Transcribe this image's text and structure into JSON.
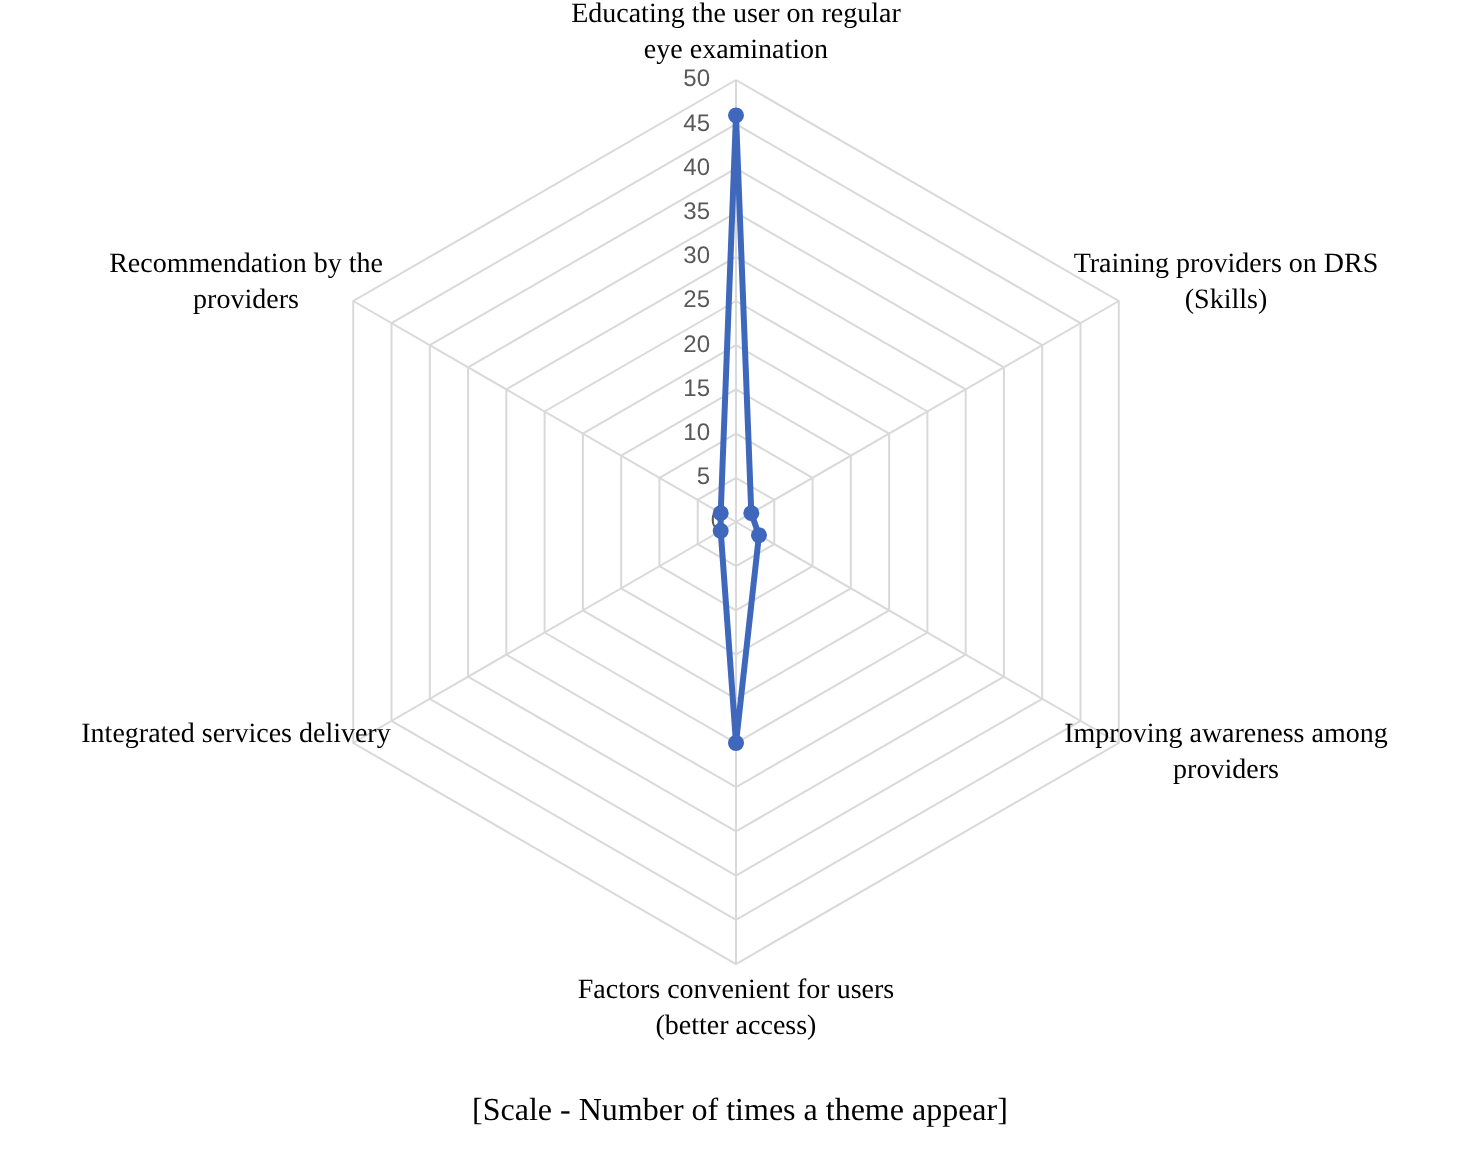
{
  "chart_data": {
    "type": "radar",
    "categories": [
      "Educating the user on regular eye examination",
      "Training providers on DRS (Skills)",
      "Improving awareness among providers",
      "Factors convenient for users (better access)",
      "Integrated services delivery",
      "Recommendation by the providers"
    ],
    "series": [
      {
        "color": "#3f68bd",
        "values": [
          46,
          2,
          3,
          25,
          2,
          2
        ]
      }
    ],
    "ylim": [
      0,
      50
    ],
    "yticks": [
      0,
      5,
      10,
      15,
      20,
      25,
      30,
      35,
      40,
      45,
      50
    ],
    "grid": true,
    "marker": "circle",
    "annotations": [
      "[Scale - Number of times a theme appear]"
    ]
  }
}
